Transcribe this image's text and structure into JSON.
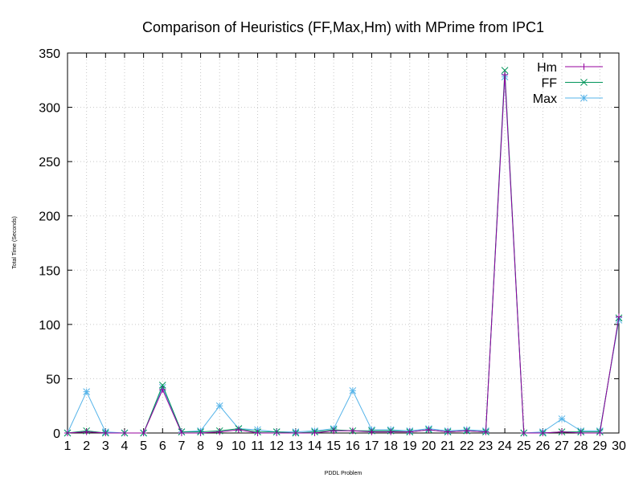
{
  "chart_data": {
    "type": "line",
    "title": "Comparison of Heuristics (FF,Max,Hm) with MPrime from IPC1",
    "xlabel": "PDDL Problem",
    "ylabel": "Total Time (Seconds)",
    "x": [
      1,
      2,
      3,
      4,
      5,
      6,
      7,
      8,
      9,
      10,
      11,
      12,
      13,
      14,
      15,
      16,
      17,
      18,
      19,
      20,
      21,
      22,
      23,
      24,
      25,
      26,
      27,
      28,
      29,
      30
    ],
    "xlim": [
      1,
      30
    ],
    "ylim": [
      0,
      350
    ],
    "yticks": [
      0,
      50,
      100,
      150,
      200,
      250,
      300,
      350
    ],
    "grid": true,
    "legend_position": "top-right",
    "series": [
      {
        "name": "Hm",
        "color": "#94009e",
        "marker": "plus",
        "values": [
          0,
          1,
          0,
          0,
          0,
          40,
          0,
          0,
          1,
          3,
          0,
          0,
          0,
          0,
          2,
          2,
          1,
          1,
          1,
          3,
          1,
          2,
          1,
          330,
          0,
          0,
          1,
          0,
          0,
          107
        ]
      },
      {
        "name": "FF",
        "color": "#00955a",
        "marker": "cross",
        "values": [
          0,
          2,
          0,
          0,
          0,
          44,
          1,
          1,
          2,
          4,
          1,
          1,
          0,
          1,
          3,
          2,
          2,
          2,
          1,
          3,
          1,
          2,
          1,
          334,
          0,
          0,
          1,
          1,
          1,
          106
        ]
      },
      {
        "name": "Max",
        "color": "#56b4e9",
        "marker": "star",
        "values": [
          0,
          38,
          1,
          0,
          0,
          42,
          1,
          2,
          25,
          4,
          3,
          1,
          1,
          2,
          4,
          39,
          3,
          3,
          2,
          4,
          2,
          3,
          2,
          328,
          0,
          1,
          13,
          2,
          2,
          104
        ]
      }
    ]
  }
}
